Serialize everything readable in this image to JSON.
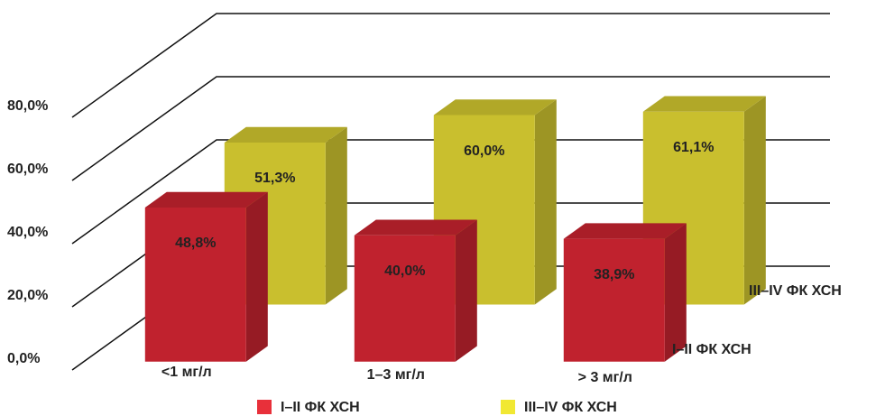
{
  "chart_data": {
    "type": "bar3d",
    "categories": [
      "<1 мг/л",
      "1–3 мг/л",
      "> 3 мг/л"
    ],
    "series": [
      {
        "name": "I–II ФК ХСН",
        "color": "#c0222e",
        "values": [
          48.8,
          40.0,
          38.9
        ],
        "value_labels": [
          "48,8%",
          "40,0%",
          "38,9%"
        ]
      },
      {
        "name": "III–IV ФК ХСН",
        "color": "#c9bf2e",
        "values": [
          51.3,
          60.0,
          61.1
        ],
        "value_labels": [
          "51,3%",
          "60,0%",
          "61,1%"
        ]
      }
    ],
    "legend_colors": [
      "#e8303a",
      "#f1e833"
    ],
    "ylim": [
      0,
      80
    ],
    "yticks": [
      {
        "value": 0,
        "label": "0,0%"
      },
      {
        "value": 20,
        "label": "20,0%"
      },
      {
        "value": 40,
        "label": "40,0%"
      },
      {
        "value": 60,
        "label": "60,0%"
      },
      {
        "value": 80,
        "label": "80,0%"
      }
    ],
    "grid": true
  }
}
